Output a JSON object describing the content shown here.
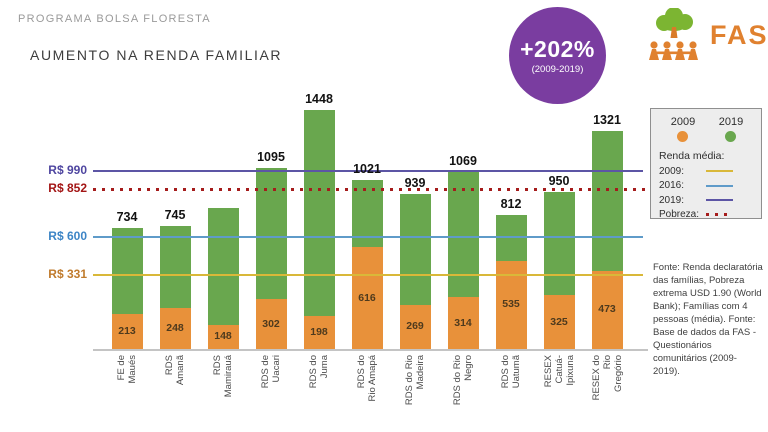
{
  "header": {
    "program": "PROGRAMA BOLSA FLORESTA",
    "title": "AUMENTO NA RENDA FAMILIAR"
  },
  "badge": {
    "value": "+202%",
    "period": "(2009-2019)"
  },
  "logo": {
    "text": "FAS",
    "tree_color": "#7cb532",
    "people_color": "#e0812f"
  },
  "legend": {
    "series": [
      {
        "label": "2009",
        "color": "#e8913a"
      },
      {
        "label": "2019",
        "color": "#69a74e"
      }
    ],
    "lines_title": "Renda média:",
    "lines": [
      {
        "label": "2009:",
        "color": "#d9b839",
        "style": "solid"
      },
      {
        "label": "2016:",
        "color": "#5f9bc9",
        "style": "solid"
      },
      {
        "label": "2019:",
        "color": "#5c55a5",
        "style": "solid"
      },
      {
        "label": "Pobreza:",
        "color": "#a51c1c",
        "style": "dotted"
      }
    ]
  },
  "chart_data": {
    "type": "bar",
    "stacked": true,
    "title": "AUMENTO NA RENDA FAMILIAR",
    "unit": "R$",
    "ylim": [
      0,
      1500
    ],
    "grid": false,
    "legend_position": "top-right",
    "categories": [
      [
        "FE de",
        "Maués"
      ],
      [
        "RDS",
        "Amanã"
      ],
      [
        "RDS",
        "Mamirauá"
      ],
      [
        "RDS de",
        "Uacari"
      ],
      [
        "RDS do",
        "Juma"
      ],
      [
        "RDS do",
        "Rio Amapá"
      ],
      [
        "RDS do Rio",
        "Madeira"
      ],
      [
        "RDS do Rio",
        "Negro"
      ],
      [
        "RDS do",
        "Uatumã"
      ],
      [
        "RESEX",
        "Catuá-",
        "Ipixuna"
      ],
      [
        "RESEX do",
        "Rio",
        "Gregório"
      ]
    ],
    "series": [
      {
        "name": "2009",
        "color": "#e8913a",
        "values": [
          213,
          248,
          148,
          302,
          198,
          616,
          269,
          314,
          535,
          325,
          473
        ]
      },
      {
        "name": "2019",
        "color": "#69a74e",
        "values": [
          734,
          745,
          null,
          1095,
          1448,
          1021,
          939,
          1069,
          812,
          950,
          1321
        ]
      }
    ],
    "unlabeled_total_estimate": 855,
    "reference_lines": [
      {
        "label": "R$ 990",
        "value": 990,
        "color": "#5c55a5",
        "label_color": "#4f46a0",
        "style": "solid",
        "meaning": "Renda média 2019"
      },
      {
        "label": "R$ 852",
        "value": 852,
        "color": "#a51c1c",
        "label_color": "#a31515",
        "style": "dotted",
        "meaning": "Pobreza"
      },
      {
        "label": "R$ 600",
        "value": 600,
        "color": "#5f9bc9",
        "label_color": "#3d85c6",
        "style": "solid",
        "meaning": "Renda média 2016"
      },
      {
        "label": "R$ 331",
        "value": 331,
        "color": "#d9b839",
        "label_color": "#c07b2d",
        "style": "solid",
        "meaning": "Renda média 2009"
      }
    ]
  },
  "source": "Fonte: Renda declaratória das famílias, Pobreza extrema USD 1.90 (World Bank); Famílias com 4 pessoas (média). Fonte: Base de dados da FAS - Questionários comunitários (2009-2019)."
}
